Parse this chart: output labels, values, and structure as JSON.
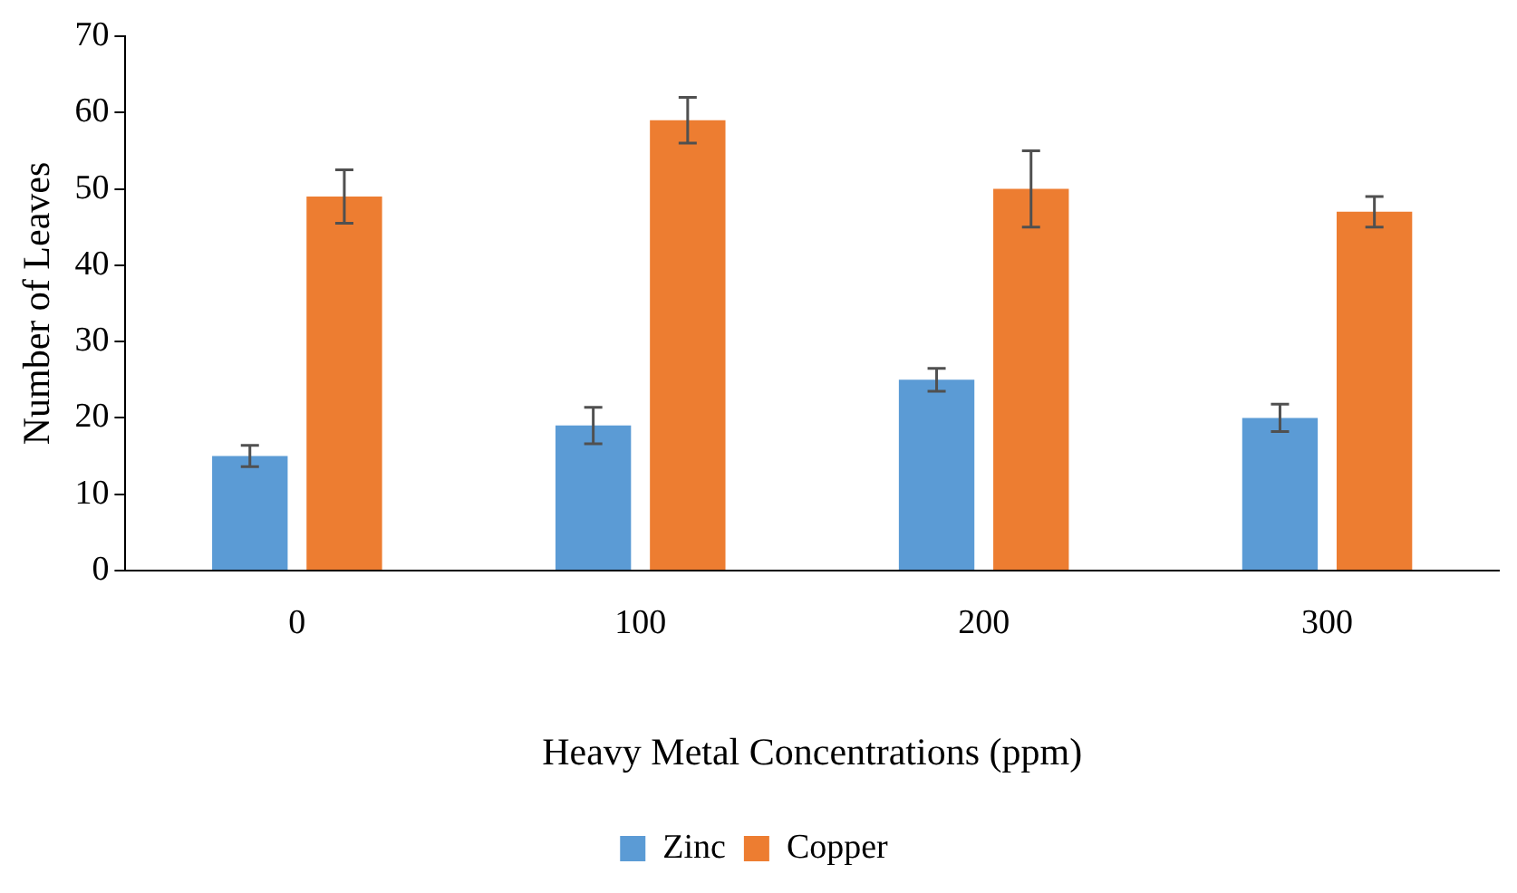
{
  "chart_data": {
    "type": "bar",
    "xlabel": "Heavy Metal Concentrations (ppm)",
    "ylabel": "Number of Leaves",
    "categories": [
      "0",
      "100",
      "200",
      "300"
    ],
    "series": [
      {
        "name": "Zinc",
        "color": "#5b9bd5",
        "values": [
          15,
          19,
          25,
          20
        ],
        "errors": [
          1.4,
          2.4,
          1.5,
          1.8
        ]
      },
      {
        "name": "Copper",
        "color": "#ed7d31",
        "values": [
          49,
          59,
          50,
          47
        ],
        "errors": [
          3.5,
          3,
          5,
          2
        ]
      }
    ],
    "ylim": [
      0,
      70
    ],
    "yticks": [
      0,
      10,
      20,
      30,
      40,
      50,
      60,
      70
    ],
    "grid": false,
    "legend": "bottom"
  }
}
